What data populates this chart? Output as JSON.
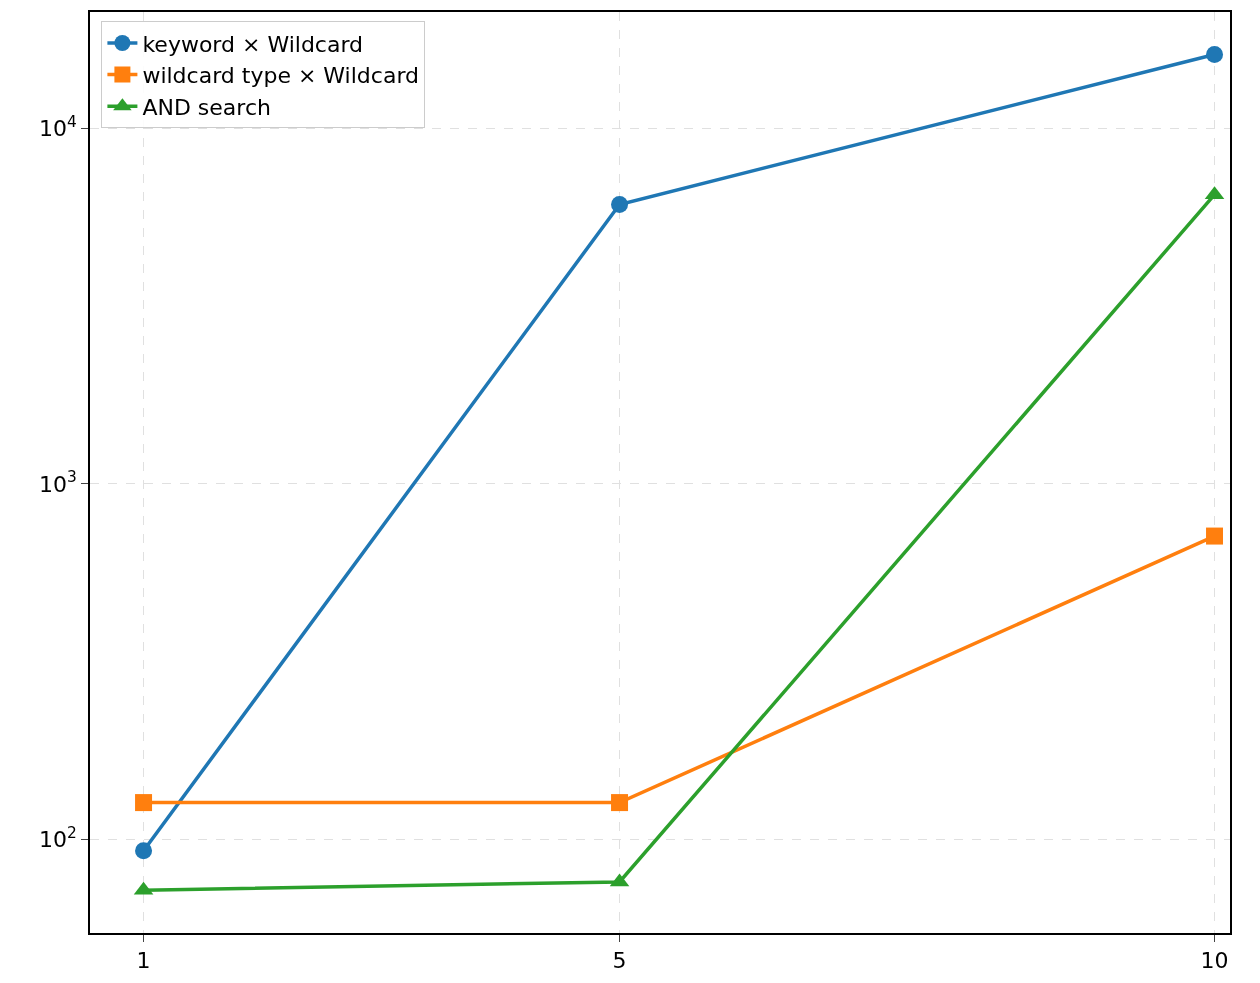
{
  "chart_data": {
    "type": "line",
    "x": [
      1,
      5,
      10
    ],
    "xlim": [
      0.55,
      10.13
    ],
    "xticks": [
      1,
      5,
      10
    ],
    "log": "y",
    "ylim": [
      54.6,
      21200
    ],
    "yticks": [
      {
        "value": 100,
        "label": "10$^{2}$"
      },
      {
        "value": 1000,
        "label": "10$^{3}$"
      },
      {
        "value": 10000,
        "label": "10$^{4}$"
      }
    ],
    "grid": true,
    "legend": "top left",
    "line_style": "solid",
    "series": [
      {
        "name": "keyword × Wildcard",
        "color": "#1f77b4",
        "marker": "circle",
        "values": [
          93,
          6100,
          16100
        ]
      },
      {
        "name": "wildcard type × Wildcard",
        "color": "#ff7f0e",
        "marker": "square",
        "values": [
          127,
          127,
          713
        ]
      },
      {
        "name": "AND search",
        "color": "#2ca02c",
        "marker": "triangle",
        "values": [
          72,
          76,
          6500
        ]
      }
    ]
  }
}
